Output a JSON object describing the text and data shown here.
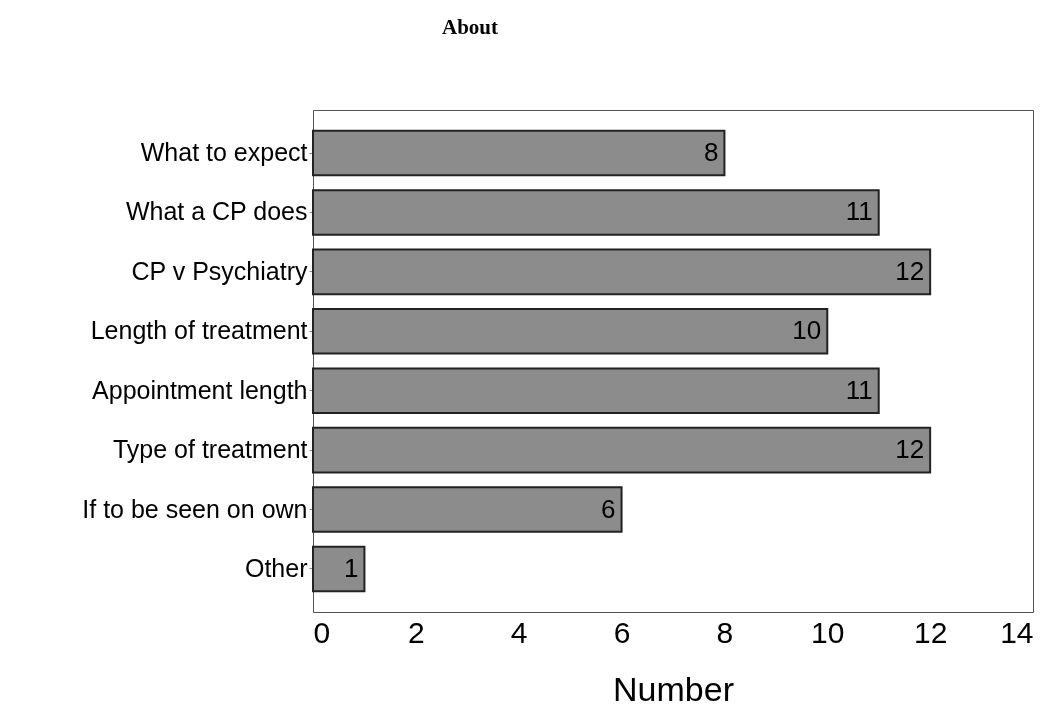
{
  "chart_data": {
    "type": "bar",
    "orientation": "horizontal",
    "title": "About",
    "xlabel": "Number",
    "categories": [
      "What to expect",
      "What a CP does",
      "CP v Psychiatry",
      "Length of treatment",
      "Appointment length",
      "Type of treatment",
      "If to be seen on own",
      "Other"
    ],
    "values": [
      8,
      11,
      12,
      10,
      11,
      12,
      6,
      1
    ],
    "color": "#8c8c8c",
    "xlim": [
      0,
      14
    ],
    "xticks": [
      0,
      2,
      4,
      6,
      8,
      10,
      12,
      14
    ],
    "grid": false,
    "data_labels": true
  }
}
